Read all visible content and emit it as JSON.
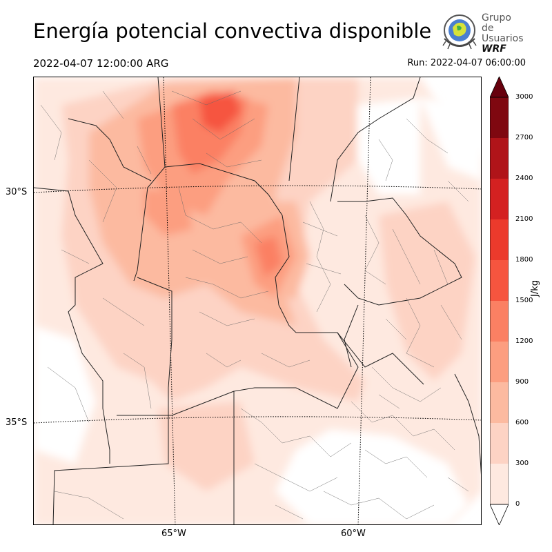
{
  "header": {
    "title": "Energía potencial convectiva disponible",
    "valid_time": "2022-04-07 12:00:00 ARG",
    "run_time": "Run: 2022-04-07 06:00:00"
  },
  "logo": {
    "line1": "Grupo de",
    "line2": "Usuarios",
    "line3": "WRF"
  },
  "map": {
    "lat_labels": [
      "30°S",
      "35°S"
    ],
    "lon_labels": [
      "65°W",
      "60°W"
    ],
    "field": "CAPE",
    "region": "Argentina central"
  },
  "colorbar": {
    "unit": "J/kg",
    "ticks": [
      "0",
      "300",
      "600",
      "900",
      "1200",
      "1500",
      "1800",
      "2100",
      "2400",
      "2700",
      "3000"
    ],
    "colors": [
      "#fee9e0",
      "#fdd3c4",
      "#fcbaa0",
      "#fc9e80",
      "#fb8063",
      "#f6553f",
      "#ec3a2c",
      "#d42121",
      "#b01419",
      "#7f0810"
    ]
  }
}
